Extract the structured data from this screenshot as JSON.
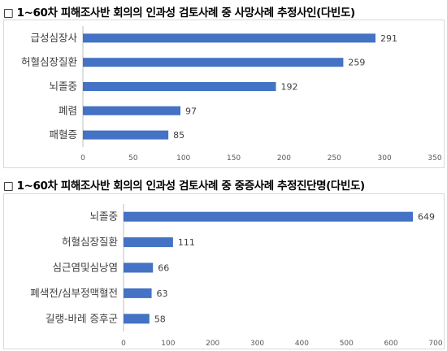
{
  "chart_data": [
    {
      "type": "bar",
      "orientation": "horizontal",
      "title": "□ 1~60차 피해조사반 회의의 인과성 검토사례 중 사망사례 추정사인(다빈도)",
      "categories": [
        "급성심장사",
        "허혈심장질환",
        "뇌졸중",
        "폐렴",
        "패혈증"
      ],
      "values": [
        291,
        259,
        192,
        97,
        85
      ],
      "xlim": [
        0,
        350
      ],
      "ticks": [
        0,
        50,
        100,
        150,
        200,
        250,
        300,
        350
      ],
      "grid": false,
      "color": "#4472C4"
    },
    {
      "type": "bar",
      "orientation": "horizontal",
      "title": "□ 1~60차 피해조사반 회의의 인과성 검토사례 중 중증사례 추정진단명(다빈도)",
      "categories": [
        "뇌졸중",
        "허혈심장질환",
        "심근염및심낭염",
        "폐색전/심부정맥혈전",
        "길랭-바레 증후군"
      ],
      "values": [
        649,
        111,
        66,
        63,
        58
      ],
      "xlim": [
        0,
        700
      ],
      "ticks": [
        0,
        100,
        200,
        300,
        400,
        500,
        600,
        700
      ],
      "grid": false,
      "color": "#4472C4"
    }
  ]
}
